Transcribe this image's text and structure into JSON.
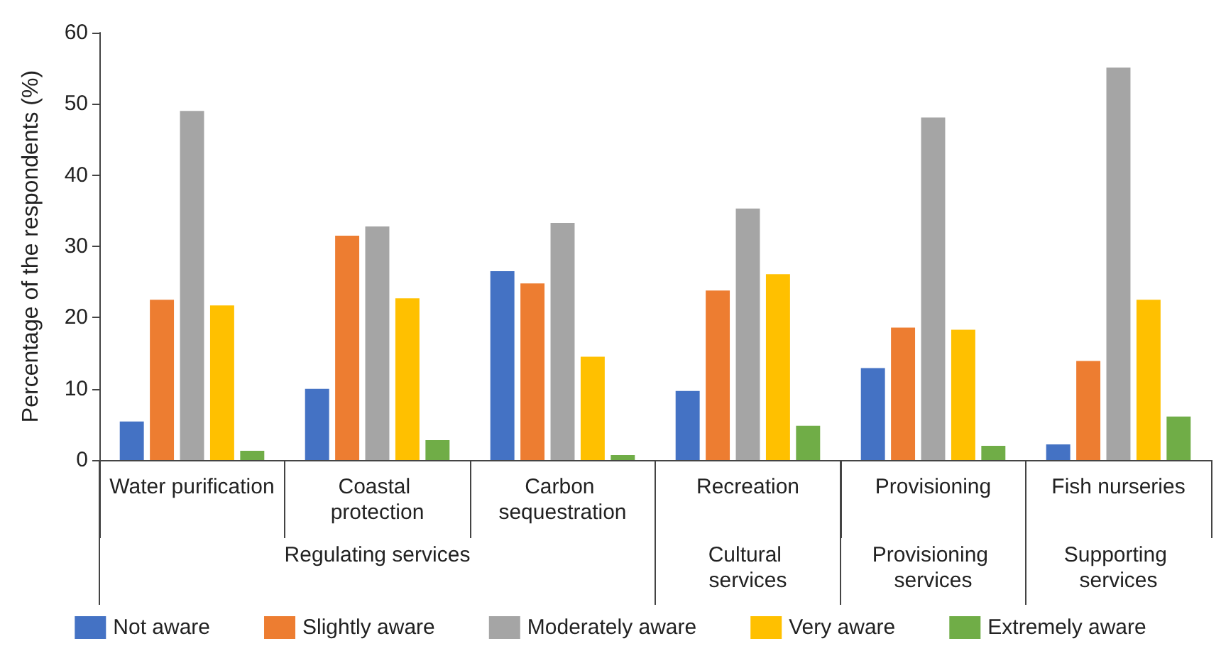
{
  "chart_data": {
    "type": "bar",
    "ylabel": "Percentage of the respondents (%)",
    "categories": [
      "Water purification",
      "Coastal protection",
      "Carbon sequestration",
      "Recreation",
      "Provisioning",
      "Fish nurseries"
    ],
    "series": [
      {
        "name": "Not aware",
        "color": "#4472c4",
        "values": [
          5.4,
          10,
          26.5,
          9.7,
          12.9,
          2.2
        ]
      },
      {
        "name": "Slightly aware",
        "color": "#ed7d31",
        "values": [
          22.5,
          31.5,
          24.8,
          23.8,
          18.6,
          13.9
        ]
      },
      {
        "name": "Moderately aware",
        "color": "#a5a5a5",
        "values": [
          49,
          32.8,
          33.3,
          35.3,
          48.1,
          55.1
        ]
      },
      {
        "name": "Very aware",
        "color": "#ffc000",
        "values": [
          21.7,
          22.7,
          14.5,
          26.1,
          18.3,
          22.5
        ]
      },
      {
        "name": "Extremely aware",
        "color": "#70ad47",
        "values": [
          1.3,
          2.8,
          0.7,
          4.8,
          2.0,
          6.1
        ]
      }
    ],
    "annotations": [
      "Regulating services",
      "Cultural services",
      "Provisioning services",
      "Supporting services"
    ],
    "ylim": [
      0,
      60
    ],
    "yticks": [
      0,
      10,
      20,
      30,
      40,
      50,
      60
    ],
    "grid": false,
    "legend": "bottom"
  }
}
